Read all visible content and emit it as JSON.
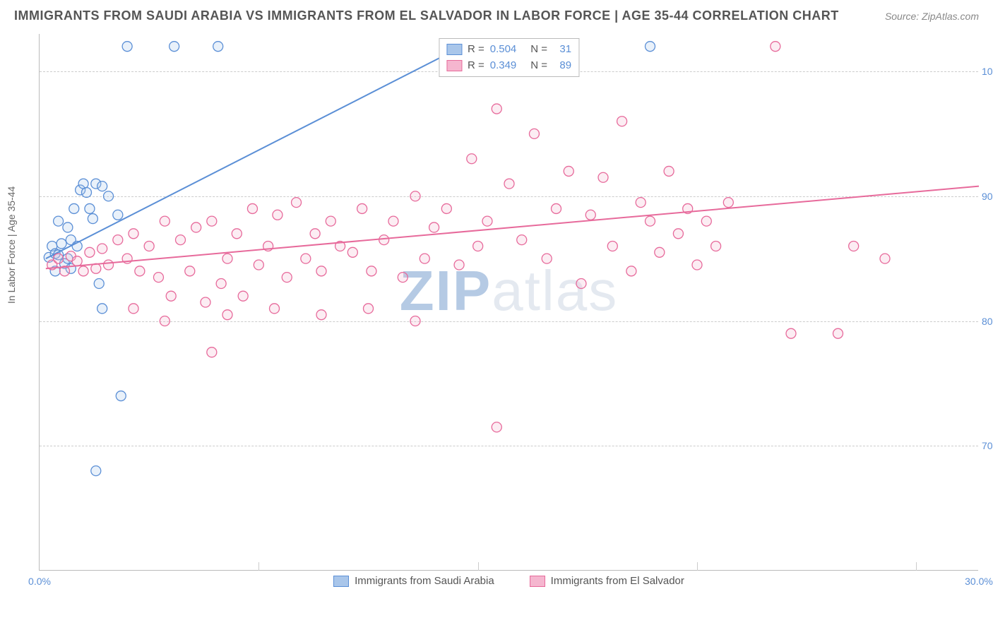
{
  "title": "IMMIGRANTS FROM SAUDI ARABIA VS IMMIGRANTS FROM EL SALVADOR IN LABOR FORCE | AGE 35-44 CORRELATION CHART",
  "source": "Source: ZipAtlas.com",
  "ylabel": "In Labor Force | Age 35-44",
  "watermark_a": "ZIP",
  "watermark_b": "atlas",
  "chart": {
    "type": "scatter",
    "xlim": [
      0,
      30
    ],
    "ylim": [
      60,
      103
    ],
    "yticks": [
      70,
      80,
      90,
      100
    ],
    "ytick_labels": [
      "70.0%",
      "80.0%",
      "90.0%",
      "100.0%"
    ],
    "xticks_visible": [
      0,
      30
    ],
    "xtick_labels": [
      "0.0%",
      "30.0%"
    ],
    "xticks_minor": [
      7,
      14,
      21,
      28
    ],
    "grid_color": "#cccccc",
    "background_color": "#ffffff",
    "marker_radius": 7,
    "marker_stroke_width": 1.3,
    "marker_fill_opacity": 0.25,
    "line_width": 2,
    "series": [
      {
        "name": "Immigrants from Saudi Arabia",
        "color": "#5b8fd6",
        "fill": "#a9c6ea",
        "R": "0.504",
        "N": "31",
        "regression": {
          "x1": 0.2,
          "y1": 85,
          "x2": 13.5,
          "y2": 102
        },
        "points": [
          [
            0.3,
            85.1
          ],
          [
            0.4,
            86.0
          ],
          [
            0.5,
            85.4
          ],
          [
            0.6,
            85.3
          ],
          [
            0.7,
            86.2
          ],
          [
            0.8,
            84.6
          ],
          [
            0.6,
            88.0
          ],
          [
            0.9,
            87.5
          ],
          [
            1.0,
            86.5
          ],
          [
            1.1,
            89.0
          ],
          [
            1.3,
            90.5
          ],
          [
            1.4,
            91.0
          ],
          [
            1.5,
            90.3
          ],
          [
            1.6,
            89.0
          ],
          [
            1.7,
            88.2
          ],
          [
            1.8,
            91.0
          ],
          [
            2.0,
            90.8
          ],
          [
            2.2,
            90.0
          ],
          [
            2.5,
            88.5
          ],
          [
            2.8,
            102.0
          ],
          [
            4.3,
            102.0
          ],
          [
            5.7,
            102.0
          ],
          [
            1.9,
            83.0
          ],
          [
            2.0,
            81.0
          ],
          [
            2.6,
            74.0
          ],
          [
            1.8,
            68.0
          ],
          [
            0.5,
            84.0
          ],
          [
            0.9,
            85.0
          ],
          [
            1.2,
            86.0
          ],
          [
            1.0,
            84.2
          ],
          [
            19.5,
            102.0
          ]
        ]
      },
      {
        "name": "Immigrants from El Salvador",
        "color": "#e76a9b",
        "fill": "#f5b6cf",
        "R": "0.349",
        "N": "89",
        "regression": {
          "x1": 0.2,
          "y1": 84.2,
          "x2": 30,
          "y2": 90.8
        },
        "points": [
          [
            0.4,
            84.5
          ],
          [
            0.6,
            85.0
          ],
          [
            0.8,
            84.0
          ],
          [
            1.0,
            85.2
          ],
          [
            1.2,
            84.8
          ],
          [
            1.4,
            84.0
          ],
          [
            1.6,
            85.5
          ],
          [
            1.8,
            84.2
          ],
          [
            2.0,
            85.8
          ],
          [
            2.2,
            84.5
          ],
          [
            2.5,
            86.5
          ],
          [
            2.8,
            85.0
          ],
          [
            3.0,
            87.0
          ],
          [
            3.2,
            84.0
          ],
          [
            3.5,
            86.0
          ],
          [
            3.8,
            83.5
          ],
          [
            4.0,
            88.0
          ],
          [
            4.2,
            82.0
          ],
          [
            4.5,
            86.5
          ],
          [
            4.8,
            84.0
          ],
          [
            5.0,
            87.5
          ],
          [
            5.3,
            81.5
          ],
          [
            5.5,
            88.0
          ],
          [
            5.8,
            83.0
          ],
          [
            6.0,
            85.0
          ],
          [
            6.3,
            87.0
          ],
          [
            6.5,
            82.0
          ],
          [
            6.8,
            89.0
          ],
          [
            7.0,
            84.5
          ],
          [
            7.3,
            86.0
          ],
          [
            5.5,
            77.5
          ],
          [
            7.6,
            88.5
          ],
          [
            7.9,
            83.5
          ],
          [
            8.2,
            89.5
          ],
          [
            8.5,
            85.0
          ],
          [
            8.8,
            87.0
          ],
          [
            9.0,
            84.0
          ],
          [
            9.3,
            88.0
          ],
          [
            9.6,
            86.0
          ],
          [
            10.0,
            85.5
          ],
          [
            10.3,
            89.0
          ],
          [
            10.6,
            84.0
          ],
          [
            11.0,
            86.5
          ],
          [
            11.3,
            88.0
          ],
          [
            11.6,
            83.5
          ],
          [
            12.0,
            90.0
          ],
          [
            12.3,
            85.0
          ],
          [
            12.6,
            87.5
          ],
          [
            13.0,
            89.0
          ],
          [
            13.4,
            84.5
          ],
          [
            13.8,
            93.0
          ],
          [
            14.0,
            86.0
          ],
          [
            14.3,
            88.0
          ],
          [
            14.6,
            71.5
          ],
          [
            14.6,
            97.0
          ],
          [
            15.0,
            91.0
          ],
          [
            15.4,
            86.5
          ],
          [
            15.8,
            95.0
          ],
          [
            16.2,
            85.0
          ],
          [
            16.5,
            89.0
          ],
          [
            16.9,
            92.0
          ],
          [
            17.3,
            83.0
          ],
          [
            17.6,
            88.5
          ],
          [
            18.0,
            91.5
          ],
          [
            18.3,
            86.0
          ],
          [
            18.6,
            96.0
          ],
          [
            18.9,
            84.0
          ],
          [
            19.2,
            89.5
          ],
          [
            19.5,
            88.0
          ],
          [
            19.8,
            85.5
          ],
          [
            20.1,
            92.0
          ],
          [
            20.4,
            87.0
          ],
          [
            20.7,
            89.0
          ],
          [
            21.0,
            84.5
          ],
          [
            21.3,
            88.0
          ],
          [
            21.6,
            86.0
          ],
          [
            22.0,
            89.5
          ],
          [
            23.5,
            102.0
          ],
          [
            24.0,
            79.0
          ],
          [
            25.5,
            79.0
          ],
          [
            26.0,
            86.0
          ],
          [
            27.0,
            85.0
          ],
          [
            3.0,
            81.0
          ],
          [
            4.0,
            80.0
          ],
          [
            6.0,
            80.5
          ],
          [
            7.5,
            81.0
          ],
          [
            9.0,
            80.5
          ],
          [
            10.5,
            81.0
          ],
          [
            12.0,
            80.0
          ]
        ]
      }
    ],
    "legend": {
      "r_label": "R =",
      "n_label": "N ="
    }
  }
}
